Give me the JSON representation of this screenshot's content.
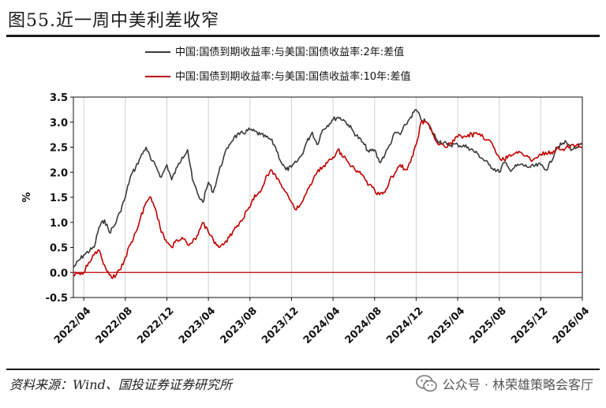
{
  "figure_title": "图55.近一周中美利差收窄",
  "source": "资料来源：Wind、国投证券证券研究所",
  "watermark": "公众号 · 林荣雄策略会客厅",
  "chart_data": {
    "type": "line",
    "title": "",
    "ylabel": "%",
    "xlabel": "",
    "ylim": [
      -0.5,
      3.5
    ],
    "yticks": [
      -0.5,
      0.0,
      0.5,
      1.0,
      1.5,
      2.0,
      2.5,
      3.0,
      3.5
    ],
    "ytick_labels": [
      "-0.5",
      "0.0",
      "0.5",
      "1.0",
      "1.5",
      "2.0",
      "2.5",
      "3.0",
      "3.5"
    ],
    "x_start": "2022/03",
    "x_end": "2026/04",
    "xtick_labels": [
      "2022/04",
      "2022/08",
      "2022/12",
      "2023/04",
      "2023/08",
      "2023/12",
      "2024/04",
      "2024/08",
      "2024/12",
      "2025/04",
      "2025/08",
      "2025/12",
      "2026/04"
    ],
    "grid": "vertical",
    "legend_position": "top",
    "series": [
      {
        "name": "中国:国债到期收益率:与美国:国债收益率:2年:差值",
        "color": "#3a3a3a",
        "x": [
          "2022/03/01",
          "2022/04/01",
          "2022/05/01",
          "2022/05/15",
          "2022/06/01",
          "2022/06/15",
          "2022/07/01",
          "2022/07/15",
          "2022/08/01",
          "2022/08/15",
          "2022/09/01",
          "2022/09/15",
          "2022/10/01",
          "2022/10/15",
          "2022/11/01",
          "2022/11/15",
          "2022/12/01",
          "2022/12/15",
          "2023/01/01",
          "2023/01/15",
          "2023/02/01",
          "2023/02/15",
          "2023/03/01",
          "2023/03/15",
          "2023/04/01",
          "2023/04/15",
          "2023/05/01",
          "2023/05/15",
          "2023/06/01",
          "2023/06/15",
          "2023/07/01",
          "2023/08/01",
          "2023/09/01",
          "2023/10/01",
          "2023/10/15",
          "2023/11/01",
          "2023/11/15",
          "2023/12/01",
          "2023/12/15",
          "2024/01/01",
          "2024/01/15",
          "2024/02/01",
          "2024/02/15",
          "2024/03/01",
          "2024/04/01",
          "2024/04/15",
          "2024/05/01",
          "2024/05/15",
          "2024/06/01",
          "2024/07/01",
          "2024/07/15",
          "2024/08/01",
          "2024/08/15",
          "2024/09/01",
          "2024/09/15",
          "2024/10/01",
          "2024/10/15",
          "2024/11/01",
          "2024/11/15",
          "2024/12/01",
          "2024/12/15",
          "2025/01/01",
          "2025/01/15",
          "2025/02/01",
          "2025/03/01",
          "2025/04/01",
          "2025/05/01",
          "2025/06/01",
          "2025/07/01",
          "2025/08/01",
          "2025/08/15",
          "2025/09/01",
          "2025/10/01",
          "2025/11/01",
          "2025/12/01",
          "2025/12/15",
          "2026/01/01",
          "2026/01/15",
          "2026/02/01",
          "2026/02/15",
          "2026/03/01",
          "2026/03/15",
          "2026/04/01"
        ],
        "values": [
          0.1,
          0.35,
          0.5,
          0.9,
          1.05,
          0.8,
          0.95,
          1.2,
          1.5,
          1.9,
          2.1,
          2.3,
          2.5,
          2.25,
          2.1,
          1.9,
          2.15,
          1.85,
          2.1,
          2.3,
          2.45,
          1.85,
          1.55,
          1.4,
          1.8,
          1.6,
          2.0,
          2.3,
          2.55,
          2.7,
          2.75,
          2.85,
          2.75,
          2.65,
          2.5,
          2.2,
          2.05,
          2.1,
          2.2,
          2.35,
          2.6,
          2.8,
          2.55,
          2.85,
          3.05,
          3.1,
          3.05,
          2.95,
          2.8,
          2.55,
          2.4,
          2.45,
          2.2,
          2.35,
          2.55,
          2.8,
          2.75,
          2.95,
          3.1,
          3.25,
          3.05,
          3.0,
          2.85,
          2.65,
          2.55,
          2.55,
          2.5,
          2.35,
          2.15,
          2.0,
          2.2,
          2.05,
          2.15,
          2.1,
          2.15,
          2.05,
          2.2,
          2.5,
          2.55,
          2.6,
          2.45,
          2.5,
          2.55
        ]
      },
      {
        "name": "中国:国债到期收益率:与美国:国债收益率:10年:差值",
        "color": "#c00000",
        "x": [
          "2022/03/01",
          "2022/04/01",
          "2022/04/15",
          "2022/05/01",
          "2022/05/15",
          "2022/06/01",
          "2022/06/15",
          "2022/07/01",
          "2022/07/15",
          "2022/08/01",
          "2022/08/15",
          "2022/09/01",
          "2022/09/15",
          "2022/10/01",
          "2022/10/15",
          "2022/11/01",
          "2022/11/15",
          "2022/12/01",
          "2022/12/15",
          "2023/01/01",
          "2023/01/15",
          "2023/02/01",
          "2023/02/15",
          "2023/03/01",
          "2023/03/15",
          "2023/04/01",
          "2023/04/15",
          "2023/05/01",
          "2023/05/15",
          "2023/06/01",
          "2023/06/15",
          "2023/07/01",
          "2023/08/01",
          "2023/08/15",
          "2023/09/01",
          "2023/09/15",
          "2023/10/01",
          "2023/10/15",
          "2023/11/01",
          "2023/11/15",
          "2023/12/01",
          "2023/12/15",
          "2024/01/01",
          "2024/01/15",
          "2024/02/01",
          "2024/02/15",
          "2024/03/01",
          "2024/04/01",
          "2024/04/15",
          "2024/05/01",
          "2024/05/15",
          "2024/06/01",
          "2024/06/15",
          "2024/07/01",
          "2024/07/15",
          "2024/08/01",
          "2024/08/15",
          "2024/09/01",
          "2024/09/15",
          "2024/10/01",
          "2024/10/15",
          "2024/11/01",
          "2024/11/15",
          "2024/12/01",
          "2024/12/15",
          "2025/01/01",
          "2025/01/15",
          "2025/02/01",
          "2025/03/01",
          "2025/04/01",
          "2025/05/01",
          "2025/06/01",
          "2025/07/01",
          "2025/08/01",
          "2025/08/15",
          "2025/09/01",
          "2025/10/01",
          "2025/11/01",
          "2025/12/01",
          "2025/12/15",
          "2026/01/01",
          "2026/01/15",
          "2026/02/01",
          "2026/02/15",
          "2026/03/01",
          "2026/03/15",
          "2026/04/01"
        ],
        "values": [
          -0.05,
          0.0,
          0.2,
          0.35,
          0.45,
          0.15,
          -0.05,
          -0.1,
          0.05,
          0.3,
          0.55,
          0.8,
          1.1,
          1.4,
          1.5,
          1.2,
          0.8,
          0.6,
          0.5,
          0.65,
          0.7,
          0.55,
          0.6,
          0.75,
          1.0,
          0.8,
          0.65,
          0.5,
          0.55,
          0.7,
          0.85,
          1.0,
          1.3,
          1.55,
          1.6,
          1.85,
          2.05,
          1.95,
          1.75,
          1.6,
          1.4,
          1.25,
          1.4,
          1.6,
          1.8,
          2.0,
          2.1,
          2.3,
          2.45,
          2.3,
          2.2,
          2.1,
          2.0,
          1.9,
          1.75,
          1.65,
          1.55,
          1.6,
          1.85,
          2.0,
          2.15,
          2.05,
          2.2,
          2.55,
          3.0,
          3.0,
          2.85,
          2.6,
          2.5,
          2.7,
          2.75,
          2.75,
          2.65,
          2.3,
          2.25,
          2.35,
          2.4,
          2.25,
          2.35,
          2.4,
          2.4,
          2.45,
          2.45,
          2.5,
          2.55,
          2.55,
          2.5
        ]
      }
    ],
    "reference_line": {
      "y": 0.0,
      "color": "#c00000"
    }
  }
}
